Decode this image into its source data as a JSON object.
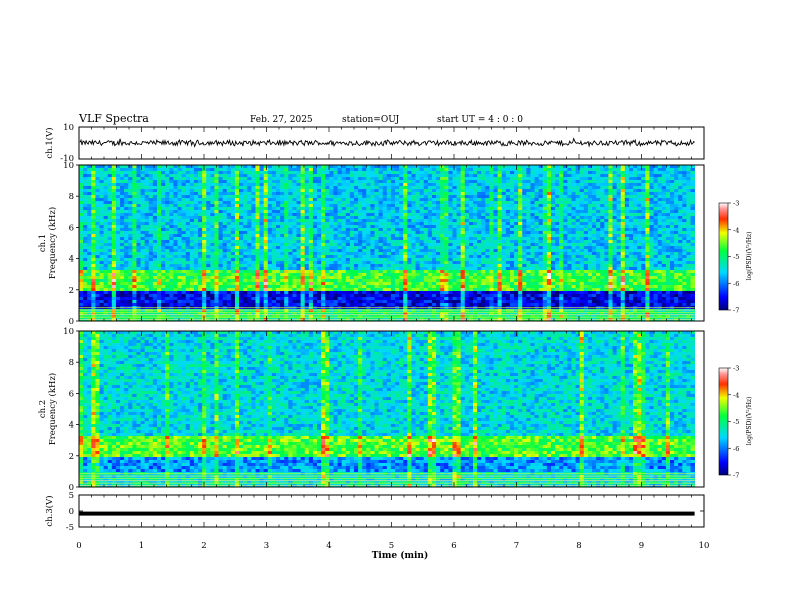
{
  "header": {
    "title": "VLF Spectra",
    "date": "Feb. 27, 2025",
    "station": "station=OUJ",
    "start": "start  UT =   4 : 0  : 0"
  },
  "chart_data": [
    {
      "type": "line",
      "name": "ch1-waveform",
      "ylabel": "ch.1(V)",
      "ylim": [
        -10,
        10
      ],
      "yticks": [
        "10",
        "-10"
      ],
      "approx_level": 0,
      "approx_amplitude": 2,
      "color": "#000000"
    },
    {
      "type": "heatmap",
      "name": "ch1-spectrogram",
      "ylabel_line1": "ch.1",
      "ylabel_line2": "Frequency (kHz)",
      "ylim": [
        0,
        10
      ],
      "yticks": [
        "0",
        "2",
        "4",
        "6",
        "8",
        "10"
      ],
      "colorbar": {
        "label": "log(PSD)(V²/Hz)",
        "range": [
          -7,
          -3
        ],
        "ticks": [
          "-3",
          "-4",
          "-5",
          "-6",
          "-7"
        ]
      },
      "bands_khz": [
        {
          "from": 0,
          "to": 0.8,
          "level": -5.0
        },
        {
          "from": 0.8,
          "to": 2.0,
          "level": -6.6
        },
        {
          "from": 2.0,
          "to": 3.3,
          "level": -4.7
        },
        {
          "from": 3.3,
          "to": 10,
          "level": -5.6
        }
      ]
    },
    {
      "type": "heatmap",
      "name": "ch2-spectrogram",
      "ylabel_line1": "ch.2",
      "ylabel_line2": "Frequency (kHz)",
      "ylim": [
        0,
        10
      ],
      "yticks": [
        "0",
        "2",
        "4",
        "6",
        "8",
        "10"
      ],
      "colorbar": {
        "label": "log(PSD)(V²/Hz)",
        "range": [
          -7,
          -3
        ],
        "ticks": [
          "-3",
          "-4",
          "-5",
          "-6",
          "-7"
        ]
      },
      "bands_khz": [
        {
          "from": 0,
          "to": 1.0,
          "level": -5.4
        },
        {
          "from": 1.0,
          "to": 2.0,
          "level": -5.9
        },
        {
          "from": 2.0,
          "to": 3.2,
          "level": -4.6
        },
        {
          "from": 3.2,
          "to": 10,
          "level": -5.5
        }
      ]
    },
    {
      "type": "line",
      "name": "ch3-waveform",
      "ylabel": "ch.3(V)",
      "ylim": [
        -5,
        5
      ],
      "yticks": [
        "5",
        "0",
        "-5"
      ],
      "approx_level": -0.8,
      "color": "#000000"
    }
  ],
  "xaxis": {
    "label": "Time (min)",
    "range": [
      0,
      10
    ],
    "data_end": 9.85,
    "ticks": [
      "0",
      "1",
      "2",
      "3",
      "4",
      "5",
      "6",
      "7",
      "8",
      "9",
      "10"
    ]
  }
}
